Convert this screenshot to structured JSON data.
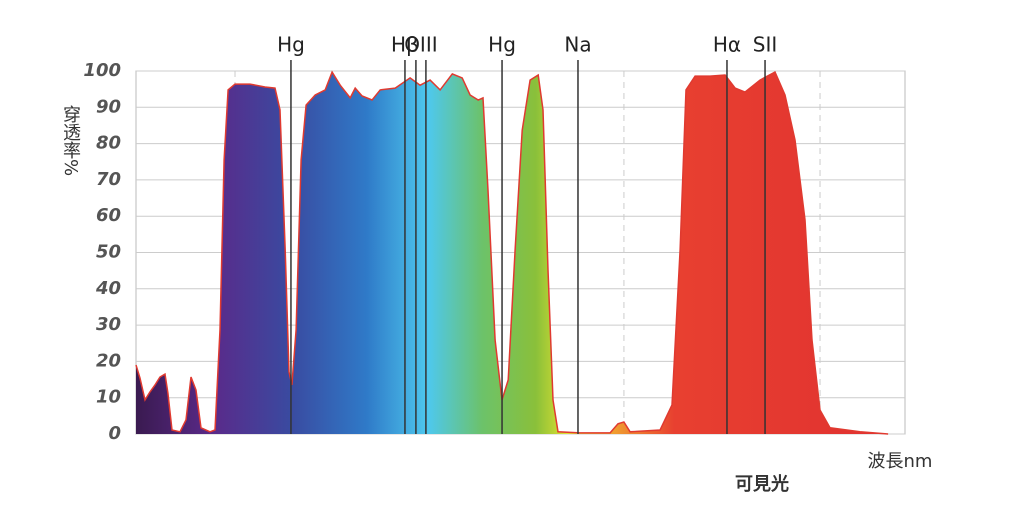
{
  "chart_data": {
    "type": "area",
    "ylabel": "穿透率%",
    "xlabel": "波長nm",
    "footer": "可見光",
    "xlim": [
      350,
      750
    ],
    "ylim": [
      0,
      100
    ],
    "yticks": [
      0,
      10,
      20,
      30,
      40,
      50,
      60,
      70,
      80,
      90,
      100
    ],
    "grid": true,
    "xgrid": [
      401.5,
      603.8,
      705.8
    ],
    "lines": [
      {
        "label": "Hg",
        "x": [
          430.6
        ]
      },
      {
        "label": "Hβ",
        "x": [
          489.9
        ]
      },
      {
        "label": "OIII",
        "x": [
          495.6,
          500.8
        ]
      },
      {
        "label": "Hg",
        "x": [
          540.4
        ]
      },
      {
        "label": "Na",
        "x": [
          579.9
        ]
      },
      {
        "label": "Hα",
        "x": [
          657.4
        ]
      },
      {
        "label": "SII",
        "x": [
          677.2
        ]
      }
    ],
    "series": [
      {
        "color": "#e03a30",
        "x": [
          350,
          352.1,
          354.7,
          357.3,
          359.9,
          362.5,
          365.1,
          366.6,
          368.7,
          372.9,
          376.0,
          378.6,
          381.2,
          383.8,
          388.5,
          391.1,
          393.7,
          395.8,
          397.9,
          401.5,
          409.3,
          417.1,
          422.3,
          424.9,
          427.6,
          429.6,
          431.1,
          433.3,
          435.9,
          438.5,
          443.2,
          448.4,
          452.0,
          456.2,
          461.4,
          464.0,
          467.6,
          472.8,
          477.0,
          484.8,
          492.6,
          497.8,
          503.0,
          508.2,
          514.5,
          519.7,
          523.8,
          528.0,
          530.5,
          533.1,
          536.8,
          540.4,
          543.6,
          547.2,
          550.9,
          555.0,
          559.2,
          561.7,
          564.3,
          566.9,
          569.5,
          580.9,
          596.6,
          600.7,
          603.8,
          607.0,
          622.6,
          628.8,
          633.0,
          636.1,
          640.8,
          648.6,
          656.4,
          661.6,
          666.8,
          674.6,
          682.4,
          687.6,
          692.8,
          698.0,
          701.6,
          705.8,
          711.0,
          726.6,
          741.2
        ],
        "values": [
          19,
          15.4,
          9.4,
          11.6,
          13.5,
          15.7,
          16.5,
          11.3,
          1.1,
          0.6,
          3.9,
          15.7,
          12.1,
          1.7,
          0.6,
          1.1,
          28.7,
          75.5,
          94.8,
          96.4,
          96.4,
          95.6,
          95.3,
          89.3,
          50.7,
          17.1,
          13.5,
          28.7,
          75.5,
          90.6,
          93.4,
          94.8,
          99.7,
          96.1,
          92.6,
          95.3,
          93.1,
          92.0,
          94.8,
          95.3,
          98.1,
          96.1,
          97.5,
          94.8,
          99.2,
          98.1,
          93.4,
          92.0,
          92.6,
          67.2,
          25.9,
          9.4,
          14.9,
          50.7,
          83.7,
          97.5,
          98.9,
          89.3,
          45.2,
          9.4,
          0.6,
          0.3,
          0.3,
          2.8,
          3.3,
          0.6,
          1.1,
          8.0,
          50.7,
          94.8,
          98.6,
          98.6,
          98.9,
          95.3,
          94.2,
          97.5,
          99.7,
          93.4,
          81.0,
          59.0,
          25.9,
          6.6,
          1.7,
          0.6,
          0
        ]
      }
    ]
  }
}
